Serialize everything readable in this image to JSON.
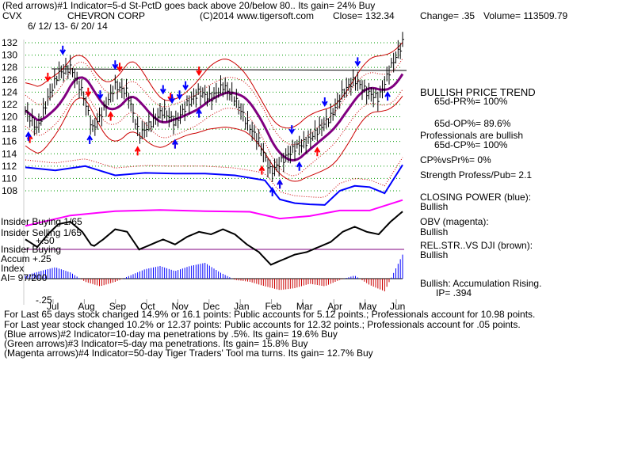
{
  "header": {
    "line1": "(Red arrows)#1 Indicator=5-d St-PctD goes back above 20/below 80.. Its gain= 24% Buy",
    "symbol": "CVX",
    "company": "CHEVRON CORP",
    "copyright": "(C)2014 www.tigersoft.com",
    "close": "Close=  132.34",
    "change": "Change= .35",
    "volume": "Volume= 113509.79",
    "date_range": "6/ 12/ 13-  6/ 20/ 14"
  },
  "panels": {
    "insider_buying_1": "Insider Buying  1/65",
    "insider_selling": "Insider Selling  1/65",
    "selling_scale": "+.50",
    "insider_buying_2": "Insider Buying",
    "accum_label": "Accum  +.25",
    "index_label": "Index",
    "ai_label": "AI= 97/200",
    "neg_scale": "-.25"
  },
  "right_panel": {
    "trend_title": "BULLISH PRICE TREND",
    "pr": "65d-PR%= 100%",
    "op": "65d-OP%= 89.6%",
    "prof1": "Professionals are bullish",
    "cp": "65d-CP%= 100%",
    "cpvspr": "CP%vsPr%=  0%",
    "strength": "Strength Profess/Pub= 2.1",
    "closing_power": "CLOSING POWER (blue):",
    "closing_power_val": "Bullish",
    "obv": "OBV (magenta):",
    "obv_val": "Bullish",
    "relstr": "REL.STR..VS DJI (brown):",
    "relstr_val": "Bullish",
    "accum": "Bullish: Accumulation Rising.",
    "ip": "IP=  .394"
  },
  "footer": {
    "line1": "For Last 65 days stock changed  14.9% or  16.1 points:  Public accounts for  5.12 points.;  Professionals account for  10.98 points.",
    "line2": "For Last year stock changed  10.2% or  12.37 points:  Public accounts for  12.32 points.;  Professionals account for  .05 points.",
    "line3": "(Blue arrows)#2 Indicator=10-day ma penetrations by .5%. Its gain= 19.6% Buy",
    "line4": "(Green arrows)#3 Indicator=5-day ma penetrations. Its gain= 15.8% Buy",
    "line5": "(Magenta arrows)#4 Indicator=50-day Tiger Traders' Tool ma turns. Its gain= 12.7% Buy"
  },
  "colors": {
    "price": "#000000",
    "bands": "#cc0000",
    "ma": "#800080",
    "closing_power": "#0000ff",
    "obv": "#ff00ff",
    "relstr": "#804000",
    "accum_pos": "#0000ff",
    "accum_neg": "#cc0000",
    "grid": "#009900"
  },
  "chart_data": {
    "type": "line",
    "title": "CHEVRON CORP",
    "months": [
      "Jul",
      "Aug",
      "Sep",
      "Oct",
      "Nov",
      "Dec",
      "Jan",
      "Feb",
      "Mar",
      "Apr",
      "May",
      "Jun"
    ],
    "y_ticks": [
      108,
      110,
      112,
      114,
      116,
      118,
      120,
      122,
      124,
      126,
      128,
      130,
      132
    ],
    "ylim": [
      107,
      133
    ],
    "grid": true,
    "series": [
      {
        "name": "",
        "x": [
          0,
          8,
          15,
          22,
          30,
          38,
          45,
          52,
          60,
          68,
          76,
          84,
          92,
          100,
          108,
          116,
          124,
          132,
          140,
          148,
          156,
          164,
          172,
          180,
          188,
          196,
          204,
          212,
          220,
          228,
          236,
          244,
          252
        ],
        "values": [
          121,
          118,
          123,
          127,
          128,
          124,
          118,
          121,
          125,
          124,
          117,
          119,
          121,
          119,
          122,
          124,
          123,
          125,
          123,
          119,
          116,
          111,
          113,
          115,
          116,
          118,
          120,
          124,
          126,
          124,
          123,
          128,
          132
        ]
      },
      {
        "name": "CLOSING POWER",
        "x": [
          0,
          20,
          40,
          60,
          80,
          100,
          120,
          140,
          160,
          170,
          180,
          190,
          200,
          210,
          220,
          230,
          240,
          252
        ],
        "values": [
          111.8,
          111.3,
          112.0,
          110.5,
          110.9,
          110.8,
          110.8,
          110.5,
          109.7,
          106.6,
          106.0,
          105.8,
          105.7,
          108.0,
          108.8,
          108.6,
          107.6,
          112.2
        ]
      },
      {
        "name": "OBV",
        "x": [
          0,
          30,
          60,
          90,
          120,
          150,
          170,
          190,
          210,
          230,
          252
        ],
        "values": [
          102.3,
          104.0,
          104.7,
          104.9,
          104.7,
          104.6,
          103.5,
          103.9,
          104.8,
          104.8,
          106.5
        ]
      }
    ],
    "accumulation_index": {
      "x": [
        0,
        10,
        20,
        30,
        40,
        50,
        60,
        70,
        80,
        90,
        100,
        110,
        120,
        130,
        140,
        150,
        160,
        170,
        180,
        190,
        200,
        210,
        220,
        230,
        240,
        252
      ],
      "values": [
        0.05,
        0.12,
        0.18,
        0.1,
        -0.05,
        -0.12,
        -0.05,
        0.05,
        0.15,
        0.2,
        0.12,
        0.2,
        0.25,
        0.1,
        -0.02,
        -0.05,
        -0.12,
        -0.18,
        -0.15,
        -0.08,
        -0.12,
        -0.02,
        0.05,
        -0.1,
        -0.2,
        0.38
      ]
    },
    "signals": {
      "buy_red": [
        3,
        57,
        75,
        100,
        158,
        170,
        195
      ],
      "sell_red": [
        15,
        42,
        63,
        97,
        116
      ],
      "buy_blue": [
        2,
        43,
        100,
        116,
        165,
        170,
        183,
        242
      ],
      "sell_blue": [
        25,
        50,
        60,
        92,
        98,
        103,
        107,
        178,
        200,
        222
      ]
    }
  }
}
